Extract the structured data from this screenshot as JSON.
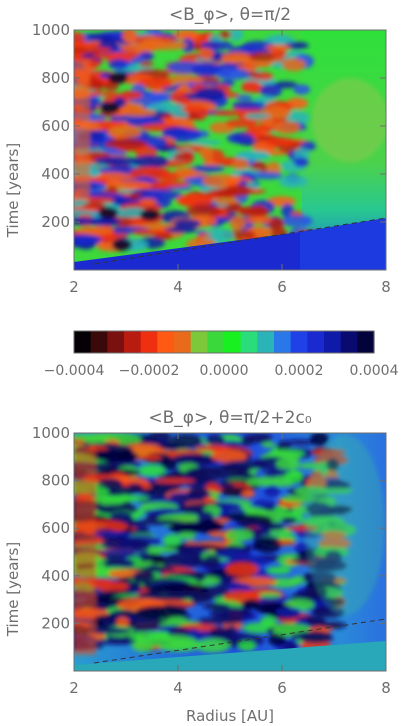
{
  "chart_data": [
    {
      "type": "heatmap",
      "title": "<B_φ>, θ=π/2",
      "xlabel": "",
      "ylabel": "Time [years]",
      "xlim": [
        2,
        8
      ],
      "ylim": [
        0,
        1000
      ],
      "x_ticks": [
        "2",
        "4",
        "6",
        "8"
      ],
      "y_ticks": [
        "200",
        "400",
        "600",
        "800",
        "1000"
      ],
      "boundary_line": {
        "x": [
          2.3,
          8.0
        ],
        "y": [
          30,
          225
        ],
        "style": "dashed"
      }
    },
    {
      "type": "heatmap",
      "title": "<B_φ>, θ=π/2+2c₀",
      "xlabel": "Radius [AU]",
      "ylabel": "Time [years]",
      "xlim": [
        2,
        8
      ],
      "ylim": [
        0,
        1000
      ],
      "x_ticks": [
        "2",
        "4",
        "6",
        "8"
      ],
      "y_ticks": [
        "200",
        "400",
        "600",
        "800",
        "1000"
      ],
      "boundary_line": {
        "x": [
          2.3,
          8.0
        ],
        "y": [
          30,
          225
        ],
        "style": "dashed"
      }
    }
  ],
  "colorbar": {
    "min": -0.0004,
    "max": 0.0004,
    "tick_labels": [
      "−0.0004",
      "−0.0002",
      "0.0000",
      "0.0002",
      "0.0004"
    ],
    "colors": [
      "#050005",
      "#3a0a0a",
      "#7a1010",
      "#b81c10",
      "#ee3010",
      "#ff5a14",
      "#e86a1a",
      "#7cc83a",
      "#3ad83a",
      "#18f020",
      "#2adc7a",
      "#2ab4b8",
      "#2a78e8",
      "#2040e8",
      "#1a2ad0",
      "#101aa8",
      "#080a70",
      "#02033a"
    ]
  }
}
